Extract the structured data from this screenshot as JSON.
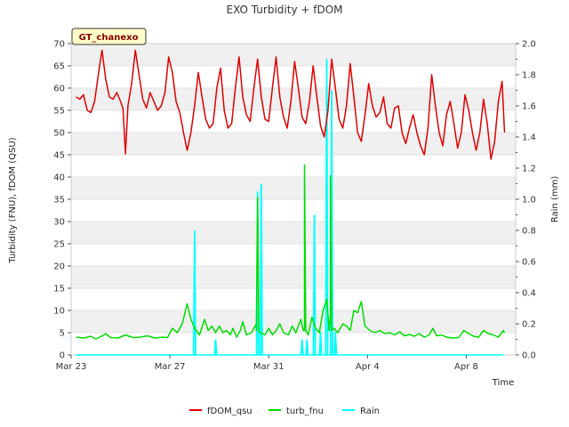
{
  "chart_data": {
    "type": "line",
    "title": "EXO Turbidity + fDOM",
    "xlabel": "Time",
    "ylabel": "Turbidity (FNU), fDOM (QSU)",
    "y2label": "Rain (mm)",
    "badge": "GT_chanexo",
    "x_range_days": [
      0,
      18
    ],
    "x_ticks": [
      {
        "day": 0,
        "label": "Mar 23"
      },
      {
        "day": 4,
        "label": "Mar 27"
      },
      {
        "day": 8,
        "label": "Mar 31"
      },
      {
        "day": 12,
        "label": "Apr 4"
      },
      {
        "day": 16,
        "label": "Apr 8"
      }
    ],
    "ylim": [
      0,
      70
    ],
    "y_ticks": [
      0,
      5,
      10,
      15,
      20,
      25,
      30,
      35,
      40,
      45,
      50,
      55,
      60,
      65,
      70
    ],
    "y2lim": [
      0,
      2.0
    ],
    "y2_ticks": [
      "0.0",
      "0.2",
      "0.4",
      "0.6",
      "0.8",
      "1.0",
      "1.2",
      "1.4",
      "1.6",
      "1.8",
      "2.0"
    ],
    "grid": true,
    "legend_position": "bottom",
    "series": [
      {
        "name": "fDOM_qsu",
        "color": "#e00000",
        "axis": "left",
        "points": [
          [
            0.2,
            58.0
          ],
          [
            0.35,
            57.5
          ],
          [
            0.5,
            58.5
          ],
          [
            0.65,
            55.0
          ],
          [
            0.8,
            54.5
          ],
          [
            0.95,
            57.0
          ],
          [
            1.1,
            63.0
          ],
          [
            1.25,
            68.5
          ],
          [
            1.4,
            62.0
          ],
          [
            1.55,
            58.0
          ],
          [
            1.7,
            57.5
          ],
          [
            1.85,
            59.0
          ],
          [
            2.0,
            57.0
          ],
          [
            2.1,
            55.5
          ],
          [
            2.2,
            45.2
          ],
          [
            2.3,
            56.0
          ],
          [
            2.45,
            61.0
          ],
          [
            2.6,
            68.5
          ],
          [
            2.75,
            63.0
          ],
          [
            2.9,
            57.5
          ],
          [
            3.05,
            55.5
          ],
          [
            3.2,
            59.0
          ],
          [
            3.35,
            57.0
          ],
          [
            3.5,
            55.0
          ],
          [
            3.65,
            56.0
          ],
          [
            3.8,
            59.0
          ],
          [
            3.95,
            67.0
          ],
          [
            4.1,
            63.5
          ],
          [
            4.25,
            57.0
          ],
          [
            4.4,
            54.5
          ],
          [
            4.55,
            50.0
          ],
          [
            4.7,
            46.0
          ],
          [
            4.85,
            50.0
          ],
          [
            5.0,
            56.0
          ],
          [
            5.15,
            63.5
          ],
          [
            5.3,
            58.0
          ],
          [
            5.45,
            53.0
          ],
          [
            5.6,
            51.0
          ],
          [
            5.75,
            52.0
          ],
          [
            5.9,
            60.0
          ],
          [
            6.05,
            64.5
          ],
          [
            6.2,
            55.0
          ],
          [
            6.35,
            51.0
          ],
          [
            6.5,
            52.0
          ],
          [
            6.65,
            60.0
          ],
          [
            6.8,
            67.0
          ],
          [
            6.95,
            58.0
          ],
          [
            7.1,
            54.0
          ],
          [
            7.25,
            52.5
          ],
          [
            7.4,
            60.0
          ],
          [
            7.55,
            66.5
          ],
          [
            7.7,
            58.0
          ],
          [
            7.85,
            53.0
          ],
          [
            8.0,
            52.5
          ],
          [
            8.15,
            60.0
          ],
          [
            8.3,
            67.0
          ],
          [
            8.45,
            58.0
          ],
          [
            8.6,
            53.5
          ],
          [
            8.75,
            51.0
          ],
          [
            8.9,
            57.0
          ],
          [
            9.05,
            66.0
          ],
          [
            9.2,
            60.0
          ],
          [
            9.35,
            53.5
          ],
          [
            9.5,
            52.0
          ],
          [
            9.65,
            57.0
          ],
          [
            9.8,
            65.0
          ],
          [
            9.95,
            58.0
          ],
          [
            10.1,
            51.5
          ],
          [
            10.25,
            49.0
          ],
          [
            10.4,
            55.0
          ],
          [
            10.55,
            66.5
          ],
          [
            10.7,
            60.0
          ],
          [
            10.85,
            53.0
          ],
          [
            11.0,
            51.0
          ],
          [
            11.15,
            56.0
          ],
          [
            11.3,
            65.5
          ],
          [
            11.45,
            58.0
          ],
          [
            11.6,
            50.0
          ],
          [
            11.75,
            48.0
          ],
          [
            11.9,
            54.0
          ],
          [
            12.05,
            61.0
          ],
          [
            12.2,
            56.0
          ],
          [
            12.35,
            53.5
          ],
          [
            12.5,
            54.5
          ],
          [
            12.65,
            58.0
          ],
          [
            12.8,
            52.0
          ],
          [
            12.95,
            51.0
          ],
          [
            13.1,
            55.5
          ],
          [
            13.25,
            56.0
          ],
          [
            13.4,
            50.0
          ],
          [
            13.55,
            47.5
          ],
          [
            13.7,
            51.0
          ],
          [
            13.85,
            54.0
          ],
          [
            14.0,
            50.0
          ],
          [
            14.15,
            47.0
          ],
          [
            14.3,
            45.0
          ],
          [
            14.45,
            51.0
          ],
          [
            14.6,
            63.0
          ],
          [
            14.75,
            56.0
          ],
          [
            14.9,
            50.0
          ],
          [
            15.05,
            47.0
          ],
          [
            15.2,
            54.0
          ],
          [
            15.35,
            57.0
          ],
          [
            15.5,
            52.0
          ],
          [
            15.65,
            46.5
          ],
          [
            15.8,
            50.0
          ],
          [
            15.95,
            58.5
          ],
          [
            16.1,
            55.0
          ],
          [
            16.25,
            50.0
          ],
          [
            16.4,
            46.0
          ],
          [
            16.55,
            50.0
          ],
          [
            16.7,
            57.5
          ],
          [
            16.85,
            52.0
          ],
          [
            17.0,
            44.0
          ],
          [
            17.15,
            48.0
          ],
          [
            17.3,
            57.0
          ],
          [
            17.45,
            61.5
          ],
          [
            17.55,
            50.0
          ]
        ]
      },
      {
        "name": "turb_fnu",
        "color": "#00dd00",
        "axis": "left",
        "points": [
          [
            0.2,
            4.0
          ],
          [
            0.5,
            3.8
          ],
          [
            0.8,
            4.2
          ],
          [
            1.0,
            3.6
          ],
          [
            1.2,
            4.1
          ],
          [
            1.4,
            4.8
          ],
          [
            1.6,
            3.9
          ],
          [
            1.9,
            3.8
          ],
          [
            2.2,
            4.5
          ],
          [
            2.5,
            3.9
          ],
          [
            2.8,
            4.0
          ],
          [
            3.1,
            4.3
          ],
          [
            3.4,
            3.8
          ],
          [
            3.7,
            4.0
          ],
          [
            3.9,
            3.9
          ],
          [
            4.1,
            6.0
          ],
          [
            4.3,
            5.0
          ],
          [
            4.5,
            7.0
          ],
          [
            4.7,
            11.5
          ],
          [
            4.85,
            8.0
          ],
          [
            5.0,
            6.0
          ],
          [
            5.2,
            4.5
          ],
          [
            5.4,
            8.0
          ],
          [
            5.55,
            5.5
          ],
          [
            5.7,
            6.5
          ],
          [
            5.85,
            5.0
          ],
          [
            6.0,
            6.5
          ],
          [
            6.15,
            5.0
          ],
          [
            6.3,
            5.5
          ],
          [
            6.45,
            4.5
          ],
          [
            6.55,
            6.0
          ],
          [
            6.7,
            4.0
          ],
          [
            6.85,
            5.5
          ],
          [
            6.95,
            7.5
          ],
          [
            7.1,
            4.5
          ],
          [
            7.3,
            5.0
          ],
          [
            7.5,
            7.0
          ],
          [
            7.65,
            5.0
          ],
          [
            7.85,
            4.5
          ],
          [
            8.0,
            6.0
          ],
          [
            8.15,
            4.5
          ],
          [
            8.3,
            5.5
          ],
          [
            8.45,
            7.0
          ],
          [
            8.6,
            5.0
          ],
          [
            8.8,
            4.5
          ],
          [
            8.95,
            6.5
          ],
          [
            9.1,
            5.0
          ],
          [
            9.3,
            8.0
          ],
          [
            9.45,
            5.5
          ],
          [
            9.6,
            4.5
          ],
          [
            9.75,
            8.5
          ],
          [
            9.9,
            6.0
          ],
          [
            10.05,
            5.0
          ],
          [
            10.2,
            10.0
          ],
          [
            10.35,
            12.5
          ],
          [
            10.5,
            9.0
          ],
          [
            10.65,
            6.0
          ],
          [
            10.8,
            5.0
          ],
          [
            11.0,
            7.0
          ],
          [
            11.15,
            6.5
          ],
          [
            11.3,
            5.5
          ],
          [
            11.45,
            10.0
          ],
          [
            11.6,
            9.5
          ],
          [
            11.75,
            12.0
          ],
          [
            11.9,
            6.5
          ],
          [
            12.1,
            5.5
          ],
          [
            12.3,
            5.0
          ],
          [
            12.5,
            5.5
          ],
          [
            12.7,
            4.8
          ],
          [
            12.9,
            5.0
          ],
          [
            13.1,
            4.5
          ],
          [
            13.3,
            5.2
          ],
          [
            13.5,
            4.3
          ],
          [
            13.7,
            4.6
          ],
          [
            13.9,
            4.2
          ],
          [
            14.1,
            4.8
          ],
          [
            14.3,
            4.0
          ],
          [
            14.5,
            4.5
          ],
          [
            14.65,
            6.0
          ],
          [
            14.8,
            4.3
          ],
          [
            15.0,
            4.5
          ],
          [
            15.2,
            4.0
          ],
          [
            15.45,
            3.8
          ],
          [
            15.7,
            3.9
          ],
          [
            15.9,
            5.5
          ],
          [
            16.1,
            4.8
          ],
          [
            16.3,
            4.2
          ],
          [
            16.5,
            4.0
          ],
          [
            16.7,
            5.5
          ],
          [
            16.9,
            4.8
          ],
          [
            17.1,
            4.5
          ],
          [
            17.3,
            4.0
          ],
          [
            17.5,
            5.5
          ],
          [
            17.55,
            5.0
          ]
        ],
        "spikes": [
          [
            7.55,
            35.3
          ],
          [
            9.45,
            42.7
          ],
          [
            10.5,
            40.3
          ]
        ]
      },
      {
        "name": "Rain",
        "color": "#00ffff",
        "axis": "right",
        "base": [
          0.2,
          17.5
        ],
        "spikes": [
          [
            5.0,
            0.8
          ],
          [
            5.85,
            0.1
          ],
          [
            7.55,
            1.05
          ],
          [
            7.7,
            1.1
          ],
          [
            9.35,
            0.1
          ],
          [
            9.55,
            0.1
          ],
          [
            9.85,
            0.9
          ],
          [
            10.1,
            0.15
          ],
          [
            10.35,
            1.9
          ],
          [
            10.55,
            1.7
          ],
          [
            10.7,
            0.15
          ]
        ]
      }
    ]
  }
}
